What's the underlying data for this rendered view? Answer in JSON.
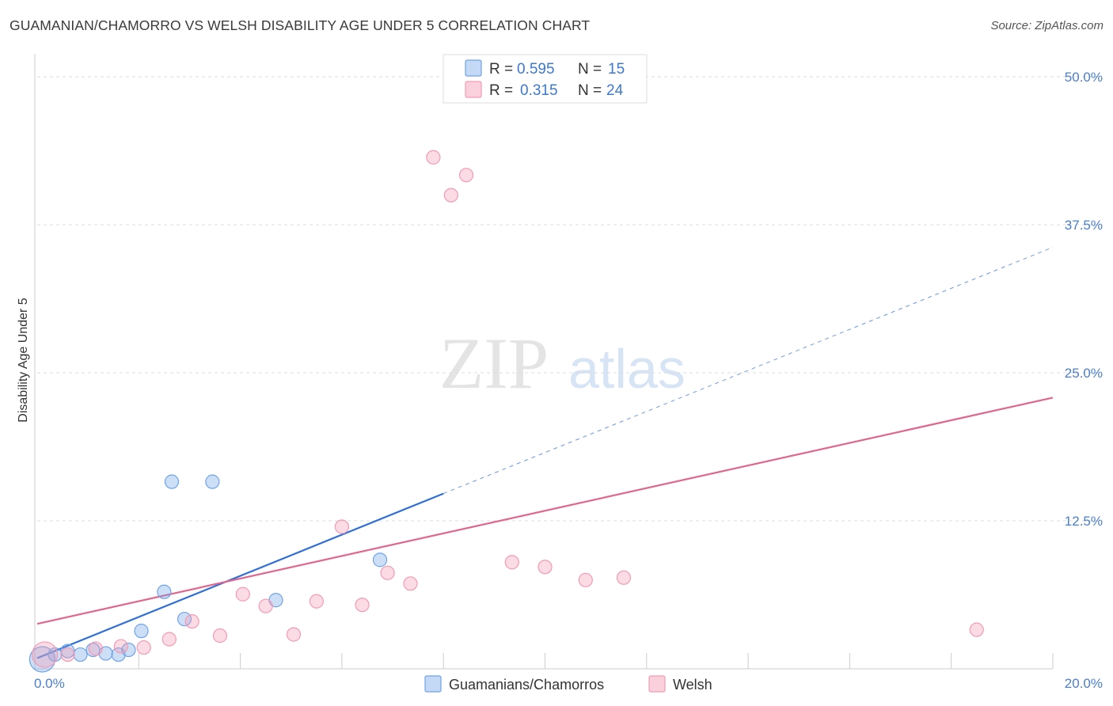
{
  "title": "GUAMANIAN/CHAMORRO VS WELSH DISABILITY AGE UNDER 5 CORRELATION CHART",
  "source": "Source: ZipAtlas.com",
  "watermark": {
    "zip": "ZIP",
    "atlas": "atlas"
  },
  "legend_top": [
    {
      "r_label": "R =",
      "r_value": "0.595",
      "n_label": "N =",
      "n_value": "15",
      "color": "#6fa3e8"
    },
    {
      "r_label": "R =",
      "r_value": "0.315",
      "n_label": "N =",
      "n_value": "24",
      "color": "#f39ab4"
    }
  ],
  "legend_bottom": [
    {
      "label": "Guamanians/Chamorros",
      "color": "#6fa3e8"
    },
    {
      "label": "Welsh",
      "color": "#f39ab4"
    }
  ],
  "chart_data": {
    "type": "scatter",
    "title": "GUAMANIAN/CHAMORRO VS WELSH DISABILITY AGE UNDER 5 CORRELATION CHART",
    "xlabel": "",
    "ylabel": "Disability Age Under 5",
    "xlim": [
      0,
      20
    ],
    "ylim": [
      0,
      50
    ],
    "x_tick_labels": [
      "0.0%",
      "20.0%"
    ],
    "y_ticks": [
      12.5,
      25.0,
      37.5,
      50.0
    ],
    "y_tick_labels": [
      "12.5%",
      "25.0%",
      "37.5%",
      "50.0%"
    ],
    "grid": true,
    "legend_position": "top-center",
    "series": [
      {
        "name": "Guamanians/Chamorros",
        "color": "#6fa3e8",
        "line_color": "#2f6fd6",
        "points": [
          {
            "x": 0.1,
            "y": 0.8,
            "big": true
          },
          {
            "x": 0.35,
            "y": 1.2
          },
          {
            "x": 0.6,
            "y": 1.5
          },
          {
            "x": 0.85,
            "y": 1.2
          },
          {
            "x": 1.1,
            "y": 1.6
          },
          {
            "x": 1.35,
            "y": 1.3
          },
          {
            "x": 1.6,
            "y": 1.2
          },
          {
            "x": 1.8,
            "y": 1.6
          },
          {
            "x": 2.05,
            "y": 3.2
          },
          {
            "x": 2.5,
            "y": 6.5
          },
          {
            "x": 2.65,
            "y": 15.8
          },
          {
            "x": 2.9,
            "y": 4.2
          },
          {
            "x": 3.45,
            "y": 15.8
          },
          {
            "x": 4.7,
            "y": 5.8
          },
          {
            "x": 6.75,
            "y": 9.2
          }
        ],
        "trend": {
          "x0": 0.0,
          "y0": 0.9,
          "x1": 8.0,
          "y1": 14.8,
          "dash_to_x": 20.0,
          "dash_to_y": 35.6
        }
      },
      {
        "name": "Welsh",
        "color": "#f39ab4",
        "line_color": "#e0668f",
        "points": [
          {
            "x": 0.15,
            "y": 1.2,
            "big": true
          },
          {
            "x": 0.6,
            "y": 1.2
          },
          {
            "x": 1.15,
            "y": 1.7
          },
          {
            "x": 1.65,
            "y": 1.9
          },
          {
            "x": 2.1,
            "y": 1.8
          },
          {
            "x": 2.6,
            "y": 2.5
          },
          {
            "x": 3.05,
            "y": 4.0
          },
          {
            "x": 3.6,
            "y": 2.8
          },
          {
            "x": 4.05,
            "y": 6.3
          },
          {
            "x": 4.5,
            "y": 5.3
          },
          {
            "x": 5.05,
            "y": 2.9
          },
          {
            "x": 5.5,
            "y": 5.7
          },
          {
            "x": 6.0,
            "y": 12.0
          },
          {
            "x": 6.4,
            "y": 5.4
          },
          {
            "x": 6.9,
            "y": 8.1
          },
          {
            "x": 7.35,
            "y": 7.2
          },
          {
            "x": 7.8,
            "y": 43.2
          },
          {
            "x": 8.15,
            "y": 40.0
          },
          {
            "x": 8.45,
            "y": 41.7
          },
          {
            "x": 9.35,
            "y": 9.0
          },
          {
            "x": 10.0,
            "y": 8.6
          },
          {
            "x": 10.8,
            "y": 7.5
          },
          {
            "x": 11.55,
            "y": 7.7
          },
          {
            "x": 18.5,
            "y": 3.3
          }
        ],
        "trend": {
          "x0": 0.0,
          "y0": 3.8,
          "x1": 20.0,
          "y1": 22.9
        }
      }
    ]
  }
}
